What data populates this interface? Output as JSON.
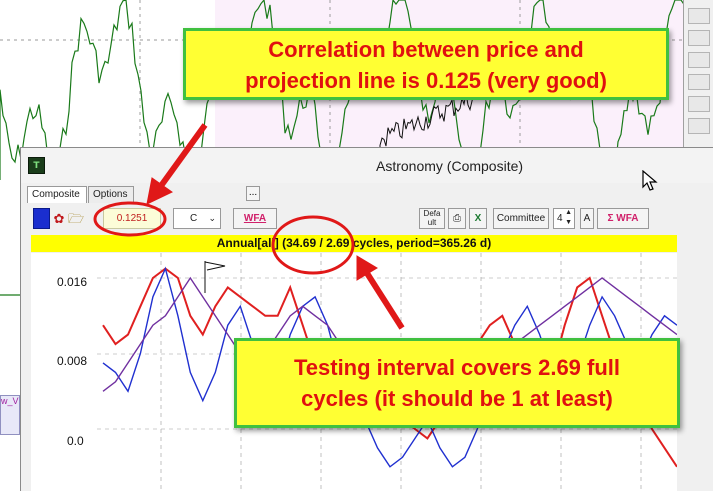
{
  "window": {
    "title": "Astronomy (Composite)",
    "logo_text": "T"
  },
  "tabs": [
    {
      "label": "Composite"
    },
    {
      "label": "Options"
    },
    {
      "label": "..."
    }
  ],
  "toolbar": {
    "correlation_value": "0.1251",
    "ddl_c_label": "C",
    "wfa_left_label": "WFA",
    "default_label": "Defa ult",
    "committee_label": "Committee",
    "spinner_value": "4",
    "a_label": "A",
    "sigma_wfa_label": "Σ WFA"
  },
  "summary": {
    "text": "Annual[all]  (34.69 / 2.69 cycles, period=365.26 d)"
  },
  "chart_data": {
    "type": "line",
    "y_ticks": [
      "0.016",
      "0.008",
      "0.0"
    ],
    "ylim": [
      -0.005,
      0.018
    ],
    "grid": true,
    "series": [
      {
        "color": "#e02020",
        "values": [
          0.011,
          0.009,
          0.01,
          0.013,
          0.016,
          0.017,
          0.016,
          0.012,
          0.01,
          0.013,
          0.015,
          0.014,
          0.013,
          0.012,
          0.012,
          0.015,
          0.011,
          0.007,
          0.005,
          0.003,
          0.004,
          0.006,
          0.005,
          0.003,
          0.001,
          0.0,
          -0.001,
          0.001,
          0.004,
          0.007,
          0.009,
          0.011,
          0.012,
          0.009,
          0.006,
          0.003,
          0.006,
          0.011,
          0.015,
          0.016,
          0.012,
          0.008,
          0.005,
          0.003,
          0.0,
          -0.002,
          -0.004
        ]
      },
      {
        "color": "#2030d0",
        "values": [
          0.007,
          0.006,
          0.004,
          0.008,
          0.014,
          0.017,
          0.012,
          0.006,
          0.003,
          0.006,
          0.011,
          0.013,
          0.009,
          0.004,
          0.005,
          0.01,
          0.013,
          0.014,
          0.011,
          0.006,
          0.003,
          0.001,
          -0.002,
          -0.004,
          -0.003,
          -0.001,
          0.001,
          -0.002,
          -0.004,
          -0.003,
          0.0,
          0.004,
          0.008,
          0.011,
          0.013,
          0.01,
          0.006,
          0.004,
          0.007,
          0.011,
          0.014,
          0.012,
          0.009,
          0.007,
          0.01,
          0.012,
          0.011
        ]
      },
      {
        "color": "#7030a0",
        "values": [
          0.004,
          0.005,
          0.007,
          0.009,
          0.011,
          0.012,
          0.014,
          0.016,
          0.014,
          0.012,
          0.01,
          0.008,
          0.007,
          0.008,
          0.01,
          0.012,
          0.013,
          0.012,
          0.011,
          0.009,
          0.008,
          0.007,
          0.006,
          0.005,
          0.004,
          0.003,
          0.002,
          0.003,
          0.005,
          0.006,
          0.006,
          0.007,
          0.008,
          0.009,
          0.01,
          0.011,
          0.012,
          0.013,
          0.014,
          0.015,
          0.016,
          0.015,
          0.014,
          0.013,
          0.012,
          0.011,
          0.01
        ]
      }
    ]
  },
  "annotations": {
    "correlation_note_line1": "Correlation between price and",
    "correlation_note_line2": "projection line is 0.125 (very good)",
    "testing_note_line1": "Testing interval covers 2.69 full",
    "testing_note_line2": "cycles (it should be 1 at least)"
  },
  "left_stub": {
    "text": "w_V"
  },
  "colors": {
    "annotation_fill": "#ffff33",
    "annotation_border": "#40c040",
    "annotation_text": "#e01010",
    "summary_bar": "#ffff00"
  }
}
